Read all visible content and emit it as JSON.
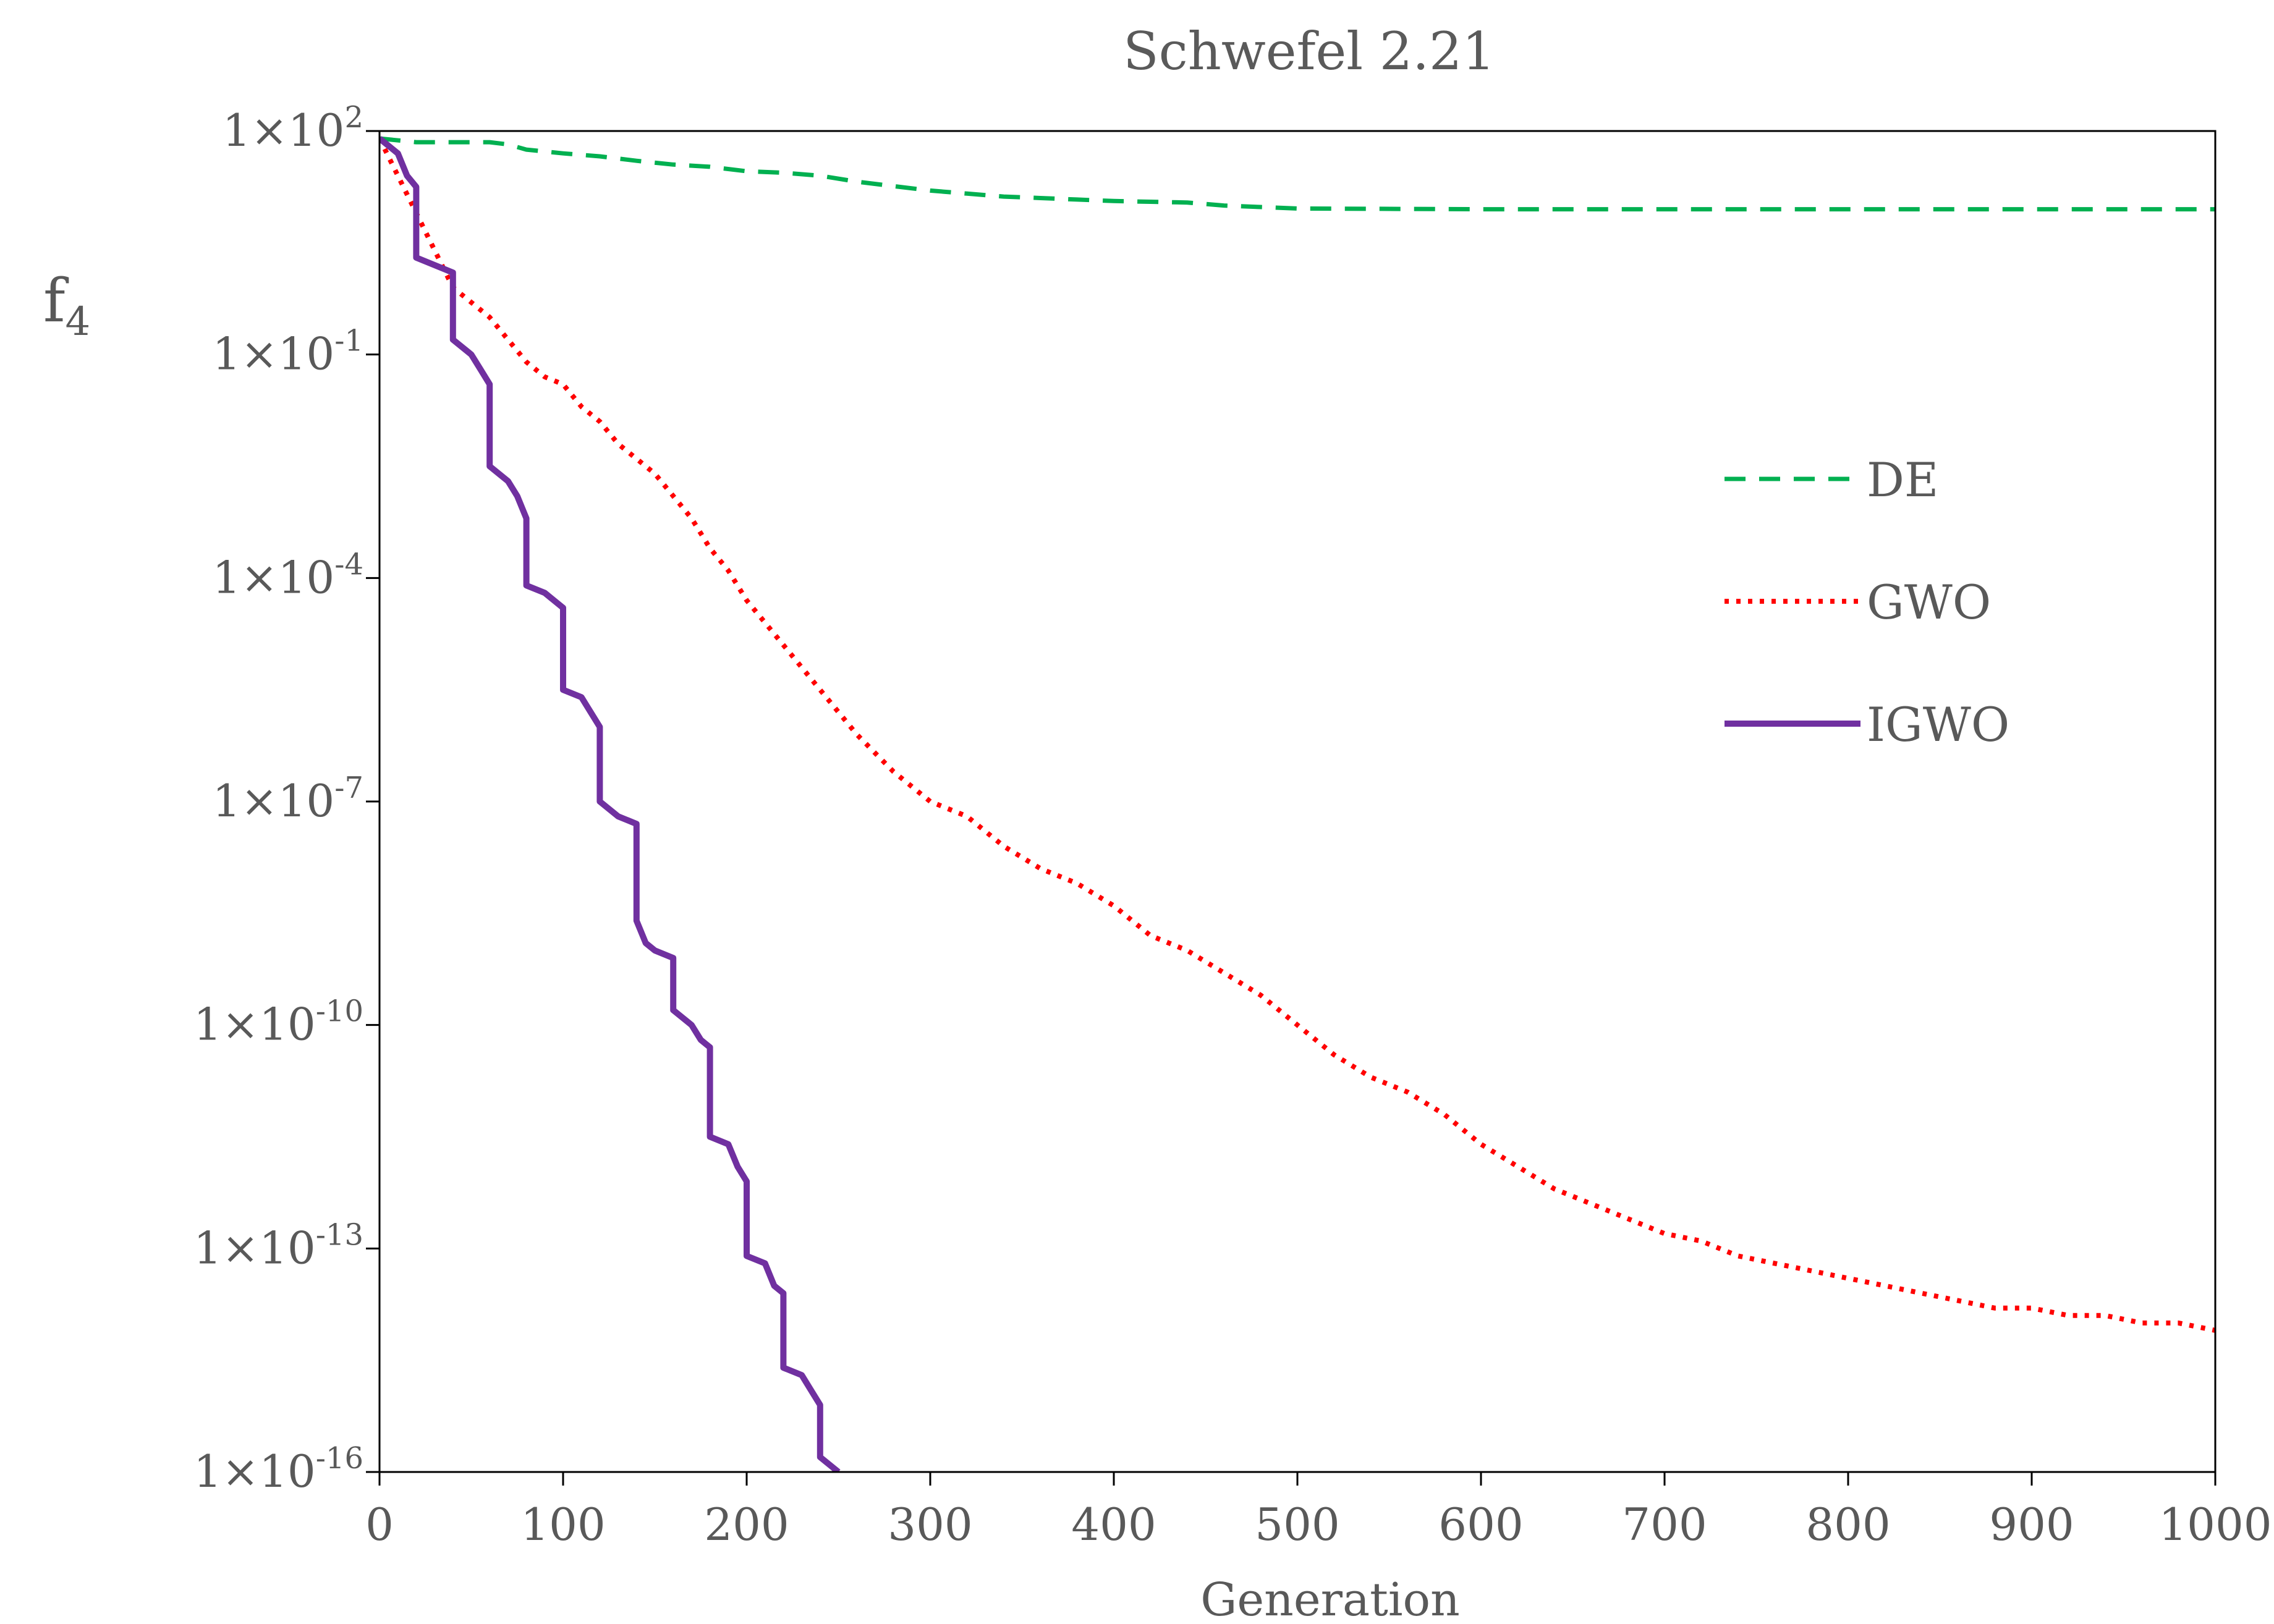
{
  "chart_data": {
    "type": "line",
    "title": "Schwefel 2.21",
    "xlabel": "Generation",
    "ylabel": "f",
    "ylabel_sub": "4",
    "yscale": "log",
    "xlim": [
      0,
      1000
    ],
    "ylim_exp": [
      -16,
      2
    ],
    "x_ticks": [
      0,
      100,
      200,
      300,
      400,
      500,
      600,
      700,
      800,
      900,
      1000
    ],
    "y_ticks": [
      {
        "exp": 2,
        "base": "1×10",
        "sup": "2"
      },
      {
        "exp": -1,
        "base": "1×10",
        "sup": "-1"
      },
      {
        "exp": -4,
        "base": "1×10",
        "sup": "-4"
      },
      {
        "exp": -7,
        "base": "1×10",
        "sup": "-7"
      },
      {
        "exp": -10,
        "base": "1×10",
        "sup": "-10"
      },
      {
        "exp": -13,
        "base": "1×10",
        "sup": "-13"
      },
      {
        "exp": -16,
        "base": "1×10",
        "sup": "-16"
      }
    ],
    "legend_position": "right",
    "series": [
      {
        "name": "DE",
        "color": "#00b050",
        "style": "dashed",
        "points": [
          [
            0,
            1.9
          ],
          [
            20,
            1.85
          ],
          [
            40,
            1.85
          ],
          [
            60,
            1.85
          ],
          [
            70,
            1.82
          ],
          [
            80,
            1.75
          ],
          [
            100,
            1.7
          ],
          [
            120,
            1.66
          ],
          [
            140,
            1.6
          ],
          [
            160,
            1.55
          ],
          [
            180,
            1.52
          ],
          [
            200,
            1.46
          ],
          [
            220,
            1.44
          ],
          [
            240,
            1.4
          ],
          [
            260,
            1.32
          ],
          [
            280,
            1.26
          ],
          [
            300,
            1.2
          ],
          [
            320,
            1.16
          ],
          [
            340,
            1.12
          ],
          [
            360,
            1.1
          ],
          [
            380,
            1.08
          ],
          [
            400,
            1.06
          ],
          [
            420,
            1.05
          ],
          [
            440,
            1.04
          ],
          [
            460,
            1.0
          ],
          [
            480,
            0.98
          ],
          [
            500,
            0.96
          ],
          [
            600,
            0.95
          ],
          [
            700,
            0.95
          ],
          [
            800,
            0.95
          ],
          [
            900,
            0.95
          ],
          [
            1000,
            0.95
          ]
        ]
      },
      {
        "name": "GWO",
        "color": "#ff0000",
        "style": "dotted",
        "points": [
          [
            0,
            1.9
          ],
          [
            10,
            1.4
          ],
          [
            20,
            0.9
          ],
          [
            30,
            0.4
          ],
          [
            40,
            -0.1
          ],
          [
            50,
            -0.3
          ],
          [
            60,
            -0.5
          ],
          [
            70,
            -0.8
          ],
          [
            80,
            -1.1
          ],
          [
            90,
            -1.3
          ],
          [
            100,
            -1.4
          ],
          [
            110,
            -1.7
          ],
          [
            120,
            -1.9
          ],
          [
            130,
            -2.2
          ],
          [
            140,
            -2.4
          ],
          [
            150,
            -2.6
          ],
          [
            160,
            -2.9
          ],
          [
            170,
            -3.2
          ],
          [
            180,
            -3.6
          ],
          [
            190,
            -3.9
          ],
          [
            200,
            -4.3
          ],
          [
            220,
            -4.9
          ],
          [
            240,
            -5.5
          ],
          [
            260,
            -6.1
          ],
          [
            280,
            -6.6
          ],
          [
            300,
            -7.0
          ],
          [
            320,
            -7.2
          ],
          [
            340,
            -7.6
          ],
          [
            360,
            -7.9
          ],
          [
            380,
            -8.1
          ],
          [
            400,
            -8.4
          ],
          [
            420,
            -8.8
          ],
          [
            440,
            -9.0
          ],
          [
            460,
            -9.3
          ],
          [
            480,
            -9.6
          ],
          [
            500,
            -10.0
          ],
          [
            520,
            -10.4
          ],
          [
            540,
            -10.7
          ],
          [
            560,
            -10.9
          ],
          [
            580,
            -11.2
          ],
          [
            600,
            -11.6
          ],
          [
            620,
            -11.9
          ],
          [
            640,
            -12.2
          ],
          [
            660,
            -12.4
          ],
          [
            680,
            -12.6
          ],
          [
            700,
            -12.8
          ],
          [
            720,
            -12.9
          ],
          [
            740,
            -13.1
          ],
          [
            760,
            -13.2
          ],
          [
            780,
            -13.3
          ],
          [
            800,
            -13.4
          ],
          [
            820,
            -13.5
          ],
          [
            840,
            -13.6
          ],
          [
            860,
            -13.7
          ],
          [
            880,
            -13.8
          ],
          [
            900,
            -13.8
          ],
          [
            920,
            -13.9
          ],
          [
            940,
            -13.9
          ],
          [
            960,
            -14.0
          ],
          [
            980,
            -14.0
          ],
          [
            1000,
            -14.1
          ]
        ]
      },
      {
        "name": "IGWO",
        "color": "#7030a0",
        "style": "solid",
        "points": [
          [
            0,
            1.9
          ],
          [
            10,
            1.7
          ],
          [
            15,
            1.4
          ],
          [
            20,
            1.25
          ],
          [
            20,
            0.3
          ],
          [
            30,
            0.2
          ],
          [
            40,
            0.1
          ],
          [
            40,
            -0.8
          ],
          [
            50,
            -1.0
          ],
          [
            55,
            -1.2
          ],
          [
            60,
            -1.4
          ],
          [
            60,
            -2.5
          ],
          [
            70,
            -2.7
          ],
          [
            75,
            -2.9
          ],
          [
            80,
            -3.2
          ],
          [
            80,
            -4.1
          ],
          [
            90,
            -4.2
          ],
          [
            100,
            -4.4
          ],
          [
            100,
            -5.5
          ],
          [
            110,
            -5.6
          ],
          [
            115,
            -5.8
          ],
          [
            120,
            -6.0
          ],
          [
            120,
            -7.0
          ],
          [
            130,
            -7.2
          ],
          [
            140,
            -7.3
          ],
          [
            140,
            -8.6
          ],
          [
            145,
            -8.9
          ],
          [
            150,
            -9.0
          ],
          [
            160,
            -9.1
          ],
          [
            160,
            -9.8
          ],
          [
            170,
            -10.0
          ],
          [
            175,
            -10.2
          ],
          [
            180,
            -10.3
          ],
          [
            180,
            -11.5
          ],
          [
            190,
            -11.6
          ],
          [
            195,
            -11.9
          ],
          [
            200,
            -12.1
          ],
          [
            200,
            -13.1
          ],
          [
            210,
            -13.2
          ],
          [
            215,
            -13.5
          ],
          [
            220,
            -13.6
          ],
          [
            220,
            -14.6
          ],
          [
            230,
            -14.7
          ],
          [
            235,
            -14.9
          ],
          [
            240,
            -15.1
          ],
          [
            240,
            -15.8
          ],
          [
            250,
            -16.0
          ]
        ]
      }
    ]
  }
}
